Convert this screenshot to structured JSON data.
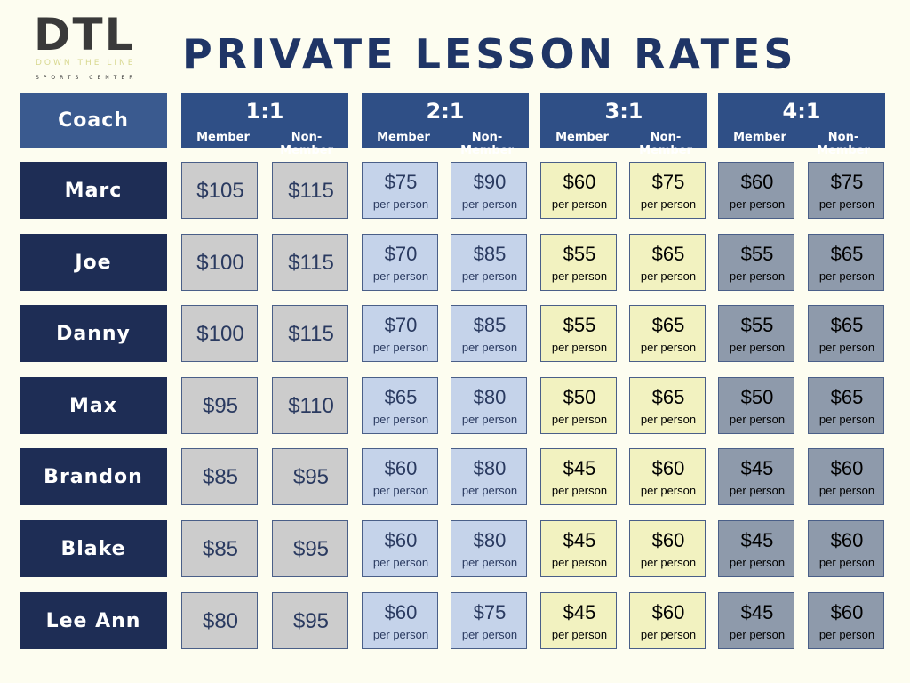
{
  "logo": {
    "mark": "DTL",
    "line1": "DOWN THE LINE",
    "line2": "SPORTS CENTER"
  },
  "title": "PRIVATE LESSON RATES",
  "table": {
    "coach_header": "Coach",
    "groups": [
      {
        "label": "1:1",
        "columns": [
          "Member",
          "Non-Member"
        ]
      },
      {
        "label": "2:1",
        "columns": [
          "Member",
          "Non-Member"
        ]
      },
      {
        "label": "3:1",
        "columns": [
          "Member",
          "Non-Member"
        ]
      },
      {
        "label": "4:1",
        "columns": [
          "Member",
          "Non-Member"
        ]
      }
    ],
    "per_person": "per person",
    "rows": [
      {
        "name": "Marc",
        "prices": [
          "$105",
          "$115",
          "$75",
          "$90",
          "$60",
          "$75",
          "$60",
          "$75"
        ]
      },
      {
        "name": "Joe",
        "prices": [
          "$100",
          "$115",
          "$70",
          "$85",
          "$55",
          "$65",
          "$55",
          "$65"
        ]
      },
      {
        "name": "Danny",
        "prices": [
          "$100",
          "$115",
          "$70",
          "$85",
          "$55",
          "$65",
          "$55",
          "$65"
        ]
      },
      {
        "name": "Max",
        "prices": [
          "$95",
          "$110",
          "$65",
          "$80",
          "$50",
          "$65",
          "$50",
          "$65"
        ]
      },
      {
        "name": "Brandon",
        "prices": [
          "$85",
          "$95",
          "$60",
          "$80",
          "$45",
          "$60",
          "$45",
          "$60"
        ]
      },
      {
        "name": "Blake",
        "prices": [
          "$85",
          "$95",
          "$60",
          "$80",
          "$45",
          "$60",
          "$45",
          "$60"
        ]
      },
      {
        "name": "Lee Ann",
        "prices": [
          "$80",
          "$95",
          "$60",
          "$75",
          "$45",
          "$60",
          "$45",
          "$60"
        ]
      }
    ]
  }
}
